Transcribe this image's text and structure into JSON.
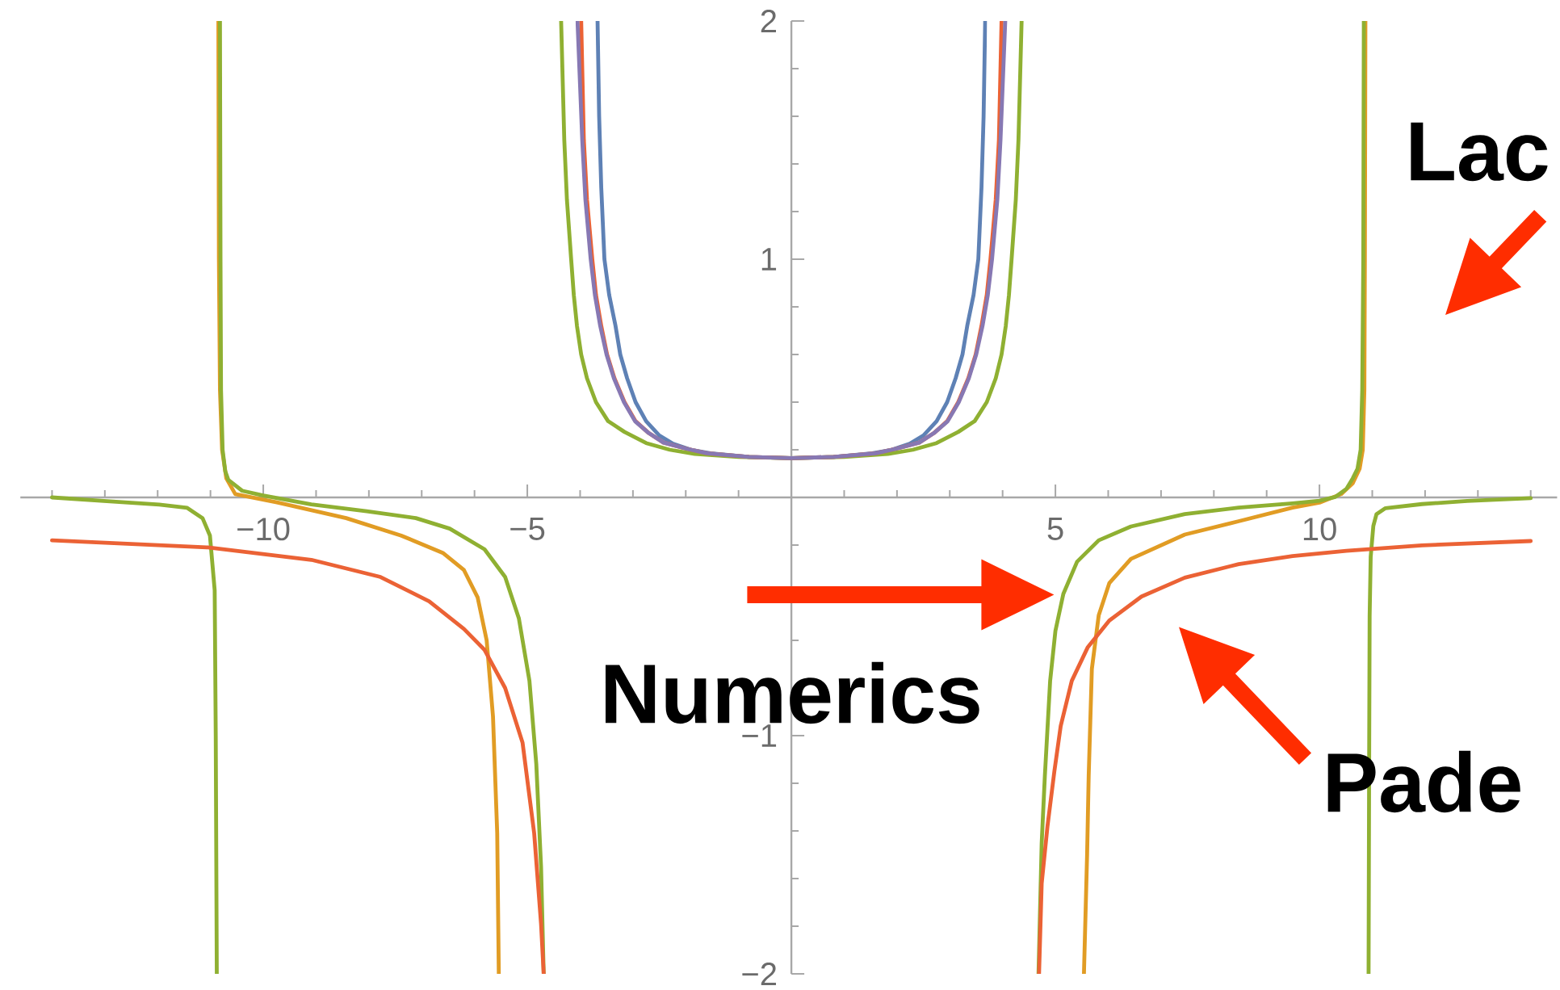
{
  "chart_data": {
    "type": "line",
    "xlim": [
      -14.6,
      14.5
    ],
    "ylim": [
      -2,
      2
    ],
    "xticks": [
      {
        "value": -14,
        "label": null
      },
      {
        "value": -13,
        "label": null
      },
      {
        "value": -12,
        "label": null
      },
      {
        "value": -11,
        "label": null
      },
      {
        "value": -10,
        "label": "−10"
      },
      {
        "value": -9,
        "label": null
      },
      {
        "value": -8,
        "label": null
      },
      {
        "value": -7,
        "label": null
      },
      {
        "value": -6,
        "label": null
      },
      {
        "value": -5,
        "label": "−5"
      },
      {
        "value": -4,
        "label": null
      },
      {
        "value": -3,
        "label": null
      },
      {
        "value": -2,
        "label": null
      },
      {
        "value": -1,
        "label": null
      },
      {
        "value": 1,
        "label": null
      },
      {
        "value": 2,
        "label": null
      },
      {
        "value": 3,
        "label": null
      },
      {
        "value": 4,
        "label": null
      },
      5,
      {
        "value": 6,
        "label": null
      },
      {
        "value": 7,
        "label": null
      },
      {
        "value": 8,
        "label": null
      },
      {
        "value": 9,
        "label": null
      },
      10,
      {
        "value": 11,
        "label": null
      },
      {
        "value": 12,
        "label": null
      },
      {
        "value": 13,
        "label": null
      },
      {
        "value": 14,
        "label": null
      }
    ],
    "yticks": [
      {
        "value": -2,
        "label": "−2"
      },
      {
        "value": -1.8,
        "label": null
      },
      {
        "value": -1.6,
        "label": null
      },
      {
        "value": -1.4,
        "label": null
      },
      {
        "value": -1.2,
        "label": null
      },
      {
        "value": -1,
        "label": "−1"
      },
      {
        "value": -0.8,
        "label": null
      },
      {
        "value": -0.6,
        "label": null
      },
      {
        "value": -0.4,
        "label": null
      },
      {
        "value": -0.2,
        "label": null
      },
      {
        "value": 0.2,
        "label": null
      },
      {
        "value": 0.4,
        "label": null
      },
      {
        "value": 0.6,
        "label": null
      },
      {
        "value": 0.8,
        "label": null
      },
      1,
      {
        "value": 1.2,
        "label": null
      },
      {
        "value": 1.4,
        "label": null
      },
      {
        "value": 1.6,
        "label": null
      },
      {
        "value": 1.8,
        "label": null
      },
      2
    ],
    "series": [
      {
        "color": "#5e81b5",
        "x": [
          -3.67,
          -3.64,
          -3.6,
          -3.54,
          -3.45,
          -3.33,
          -3.24,
          -3.11,
          -2.95,
          -2.75,
          -2.5,
          -2.24,
          -1.9,
          -1.53,
          -0.8,
          0,
          0.8,
          1.53,
          1.9,
          2.24,
          2.5,
          2.75,
          2.95,
          3.11,
          3.24,
          3.33,
          3.45,
          3.54,
          3.6,
          3.64,
          3.67
        ],
        "values": [
          2,
          1.6,
          1.3,
          1,
          0.85,
          0.72,
          0.6,
          0.5,
          0.4,
          0.32,
          0.26,
          0.225,
          0.2,
          0.185,
          0.17,
          0.165,
          0.17,
          0.185,
          0.2,
          0.225,
          0.26,
          0.32,
          0.4,
          0.5,
          0.6,
          0.72,
          0.85,
          1,
          1.3,
          1.6,
          2
        ]
      },
      {
        "color": "#e19c24",
        "x": [
          -10.85,
          -10.84,
          -10.82,
          -10.78,
          -10.7,
          -10.53,
          -9.74,
          -8.43,
          -7.39,
          -6.6,
          -6.2,
          -5.94,
          -5.77,
          -5.65,
          -5.57,
          -5.54,
          null,
          5.54,
          5.6,
          5.63,
          5.69,
          5.82,
          6.02,
          6.43,
          7.45,
          8.47,
          9.49,
          10,
          10.41,
          10.63,
          10.76,
          10.82,
          10.85,
          10.86,
          10.87
        ],
        "values": [
          2,
          1,
          0.45,
          0.2,
          0.08,
          0.014,
          -0.021,
          -0.087,
          -0.16,
          -0.233,
          -0.305,
          -0.42,
          -0.6,
          -0.92,
          -1.41,
          -2,
          null,
          -2,
          -1.5,
          -1.17,
          -0.72,
          -0.495,
          -0.36,
          -0.258,
          -0.156,
          -0.1,
          -0.043,
          -0.022,
          0.014,
          0.059,
          0.12,
          0.2,
          0.45,
          1,
          2
        ]
      },
      {
        "color": "#8fb032",
        "x": [
          -14,
          -13.02,
          -11.97,
          -11.44,
          -11.15,
          -11.01,
          -10.92,
          -10.9,
          -10.88,
          null,
          -10.82,
          -10.81,
          -10.8,
          -10.77,
          -10.72,
          -10.66,
          -10.4,
          -10,
          -9.09,
          -8.04,
          -7.11,
          -6.47,
          -5.81,
          -5.42,
          -5.16,
          -4.96,
          -4.83,
          -4.74,
          -4.69,
          null,
          -4.36,
          -4.3,
          -4.25,
          -4.17,
          -4.12,
          -4.06,
          -3.98,
          -3.87,
          -3.7,
          -3.47,
          -3.16,
          -2.75,
          -2.3,
          -1.83,
          -1,
          0,
          1,
          1.83,
          2.3,
          2.75,
          3.16,
          3.47,
          3.7,
          3.87,
          3.98,
          4.06,
          4.12,
          4.17,
          4.25,
          4.3,
          4.36,
          null,
          4.68,
          4.74,
          4.8,
          4.9,
          5,
          5.15,
          5.41,
          5.82,
          6.43,
          7.45,
          8.47,
          9.49,
          10,
          10.3,
          10.51,
          10.63,
          10.72,
          10.78,
          10.81,
          10.83,
          10.84,
          null,
          10.93,
          10.94,
          10.95,
          10.97,
          11.02,
          11.08,
          11.25,
          11.94,
          12.8,
          14
        ],
        "values": [
          0,
          -0.015,
          -0.03,
          -0.044,
          -0.087,
          -0.16,
          -0.39,
          -1,
          -2,
          null,
          2,
          1,
          0.45,
          0.2,
          0.11,
          0.073,
          0.028,
          0.008,
          -0.029,
          -0.058,
          -0.087,
          -0.131,
          -0.218,
          -0.334,
          -0.508,
          -0.77,
          -1.12,
          -1.55,
          -2,
          null,
          2,
          1.5,
          1.25,
          1,
          0.85,
          0.72,
          0.6,
          0.5,
          0.4,
          0.32,
          0.275,
          0.228,
          0.2,
          0.183,
          0.17,
          0.165,
          0.17,
          0.183,
          0.2,
          0.228,
          0.275,
          0.32,
          0.4,
          0.5,
          0.6,
          0.72,
          0.85,
          1,
          1.25,
          1.5,
          2,
          null,
          -2,
          -1.45,
          -1.17,
          -0.77,
          -0.56,
          -0.405,
          -0.27,
          -0.18,
          -0.122,
          -0.07,
          -0.043,
          -0.025,
          -0.014,
          0.002,
          0.036,
          0.08,
          0.12,
          0.2,
          0.45,
          1,
          2,
          null,
          -2,
          -1.17,
          -0.5,
          -0.25,
          -0.12,
          -0.07,
          -0.045,
          -0.028,
          -0.015,
          -0.003
        ]
      },
      {
        "color": "#eb6235",
        "x": [
          -14,
          -11.05,
          -9.09,
          -7.78,
          -6.86,
          -6.2,
          -5.81,
          -5.42,
          -5.09,
          -4.87,
          -4.74,
          -4.69,
          null,
          -3.98,
          -3.93,
          -3.87,
          -3.77,
          -3.7,
          -3.6,
          -3.49,
          -3.35,
          -3.16,
          -2.95,
          -2.7,
          -2.42,
          -2,
          -1.6,
          -0.8,
          0,
          0.8,
          1.6,
          2,
          2.42,
          2.7,
          2.95,
          3.16,
          3.35,
          3.49,
          3.6,
          3.7,
          3.77,
          3.87,
          3.93,
          3.98,
          null,
          4.69,
          4.74,
          4.85,
          4.98,
          5.1,
          5.31,
          5.61,
          6.02,
          6.63,
          7.45,
          8.47,
          9.49,
          10.51,
          11.94,
          14
        ],
        "values": [
          -0.18,
          -0.21,
          -0.262,
          -0.334,
          -0.436,
          -0.552,
          -0.64,
          -0.8,
          -1.03,
          -1.41,
          -1.79,
          -2,
          null,
          2,
          1.5,
          1.25,
          1,
          0.85,
          0.72,
          0.6,
          0.5,
          0.4,
          0.32,
          0.27,
          0.23,
          0.205,
          0.185,
          0.17,
          0.165,
          0.17,
          0.185,
          0.205,
          0.23,
          0.27,
          0.32,
          0.4,
          0.5,
          0.6,
          0.72,
          0.85,
          1,
          1.25,
          1.5,
          2,
          null,
          -2,
          -1.62,
          -1.38,
          -1.15,
          -0.96,
          -0.77,
          -0.63,
          -0.517,
          -0.416,
          -0.337,
          -0.28,
          -0.246,
          -0.224,
          -0.201,
          -0.183
        ]
      },
      {
        "color": "#8778b3",
        "x": [
          -4.05,
          -3.96,
          -3.9,
          -3.8,
          -3.72,
          -3.62,
          -3.5,
          -3.36,
          -3.17,
          -2.96,
          -2.7,
          -2.42,
          -2,
          -1.6,
          -0.8,
          0,
          0.8,
          1.6,
          2,
          2.42,
          2.7,
          2.96,
          3.17,
          3.36,
          3.5,
          3.62,
          3.72,
          3.8,
          3.9,
          3.96,
          4.05
        ],
        "values": [
          2,
          1.5,
          1.25,
          1,
          0.85,
          0.72,
          0.6,
          0.5,
          0.4,
          0.32,
          0.27,
          0.23,
          0.205,
          0.185,
          0.17,
          0.165,
          0.17,
          0.185,
          0.205,
          0.23,
          0.27,
          0.32,
          0.4,
          0.5,
          0.6,
          0.72,
          0.85,
          1,
          1.25,
          1.5,
          2
        ]
      }
    ],
    "annotations": [
      "Numerics",
      "Pade",
      "Lac"
    ]
  }
}
